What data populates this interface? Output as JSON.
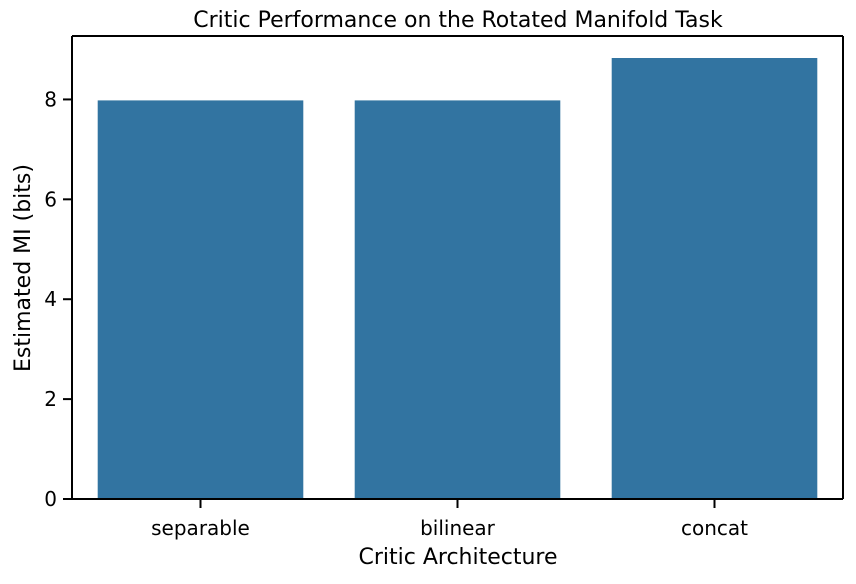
{
  "chart_data": {
    "type": "bar",
    "title": "Critic Performance on the Rotated Manifold Task",
    "xlabel": "Critic Architecture",
    "ylabel": "Estimated MI (bits)",
    "categories": [
      "separable",
      "bilinear",
      "concat"
    ],
    "values": [
      7.98,
      7.98,
      8.83
    ],
    "ylim": [
      0,
      9.27
    ],
    "yticks": [
      0,
      2,
      4,
      6,
      8
    ],
    "grid": false,
    "bar_color": "#3274a1",
    "axis_color": "#000000"
  }
}
